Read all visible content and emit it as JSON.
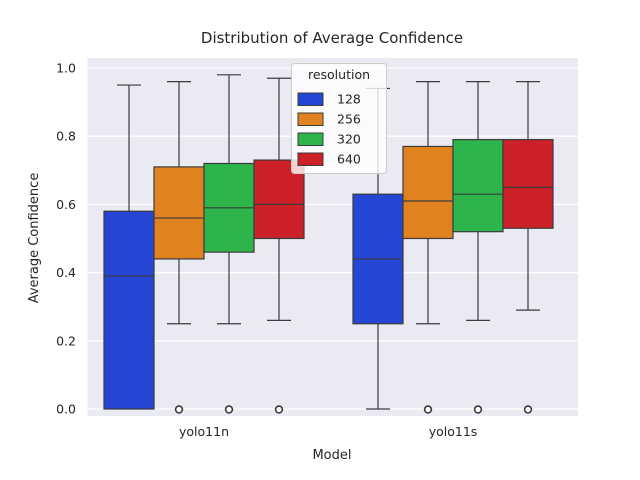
{
  "chart_data": {
    "type": "box",
    "title": "Distribution of Average Confidence",
    "xlabel": "Model",
    "ylabel": "Average Confidence",
    "ylim": [
      0.0,
      1.0
    ],
    "yticks": [
      0.0,
      0.2,
      0.4,
      0.6,
      0.8,
      1.0
    ],
    "grid": "horizontal-white-on-lavender",
    "axes_bg_color": "#eaeaf2",
    "gridline_color": "#ffffff",
    "box_edge_color": "#3b3b3b",
    "categories": [
      "yolo11n",
      "yolo11s"
    ],
    "legend": {
      "title": "resolution",
      "position": "upper center-left inside plot",
      "entries": [
        "128",
        "256",
        "320",
        "640"
      ]
    },
    "series": [
      {
        "name": "128",
        "color": "#2545d4",
        "boxes": [
          {
            "whisker_low": 0.0,
            "q1": 0.0,
            "median": 0.39,
            "q3": 0.58,
            "whisker_high": 0.95,
            "outliers": []
          },
          {
            "whisker_low": 0.0,
            "q1": 0.25,
            "median": 0.44,
            "q3": 0.63,
            "whisker_high": 0.94,
            "outliers": []
          }
        ]
      },
      {
        "name": "256",
        "color": "#e08220",
        "boxes": [
          {
            "whisker_low": 0.25,
            "q1": 0.44,
            "median": 0.56,
            "q3": 0.71,
            "whisker_high": 0.96,
            "outliers": [
              0.0
            ]
          },
          {
            "whisker_low": 0.25,
            "q1": 0.5,
            "median": 0.61,
            "q3": 0.77,
            "whisker_high": 0.96,
            "outliers": [
              0.0
            ]
          }
        ]
      },
      {
        "name": "320",
        "color": "#2db44a",
        "boxes": [
          {
            "whisker_low": 0.25,
            "q1": 0.46,
            "median": 0.59,
            "q3": 0.72,
            "whisker_high": 0.98,
            "outliers": [
              0.0
            ]
          },
          {
            "whisker_low": 0.26,
            "q1": 0.52,
            "median": 0.63,
            "q3": 0.79,
            "whisker_high": 0.96,
            "outliers": [
              0.0
            ]
          }
        ]
      },
      {
        "name": "640",
        "color": "#cc2128",
        "boxes": [
          {
            "whisker_low": 0.26,
            "q1": 0.5,
            "median": 0.6,
            "q3": 0.73,
            "whisker_high": 0.97,
            "outliers": [
              0.0
            ]
          },
          {
            "whisker_low": 0.29,
            "q1": 0.53,
            "median": 0.65,
            "q3": 0.79,
            "whisker_high": 0.96,
            "outliers": [
              0.0
            ]
          }
        ]
      }
    ]
  }
}
